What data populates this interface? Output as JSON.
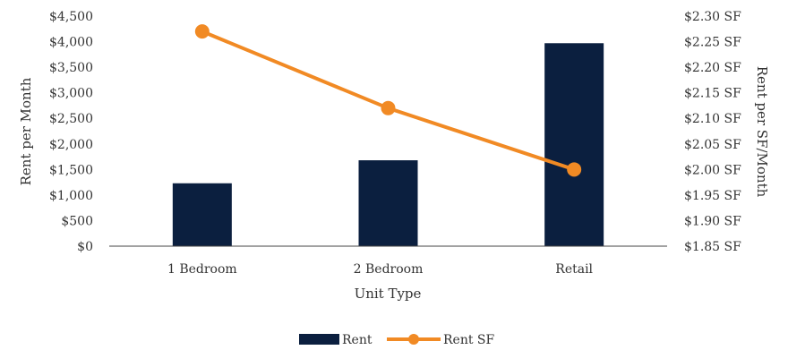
{
  "chart_data": {
    "type": "bar",
    "title": "",
    "categories": [
      "1 Bedroom",
      "2 Bedroom",
      "Retail"
    ],
    "xlabel": "Unit Type",
    "ylabel": "Rent per Month",
    "ylabel_right": "Rent per SF/Month",
    "ylim": [
      0,
      4500
    ],
    "ylim_right": [
      1.85,
      2.3
    ],
    "yticks": [
      "$0",
      "$500",
      "$1,000",
      "$1,500",
      "$2,000",
      "$2,500",
      "$3,000",
      "$3,500",
      "$4,000",
      "$4,500"
    ],
    "yticks_right": [
      "$1.85 SF",
      "$1.90 SF",
      "$1.95 SF",
      "$2.00 SF",
      "$2.05 SF",
      "$2.10 SF",
      "$2.15 SF",
      "$2.20 SF",
      "$2.25 SF",
      "$2.30 SF"
    ],
    "series": [
      {
        "name": "Rent",
        "type": "bar",
        "axis": "left",
        "color": "#0b1f3f",
        "values": [
          1230,
          1680,
          3970
        ]
      },
      {
        "name": "Rent SF",
        "type": "line",
        "axis": "right",
        "color": "#f18a24",
        "values": [
          2.27,
          2.12,
          2.0
        ]
      }
    ],
    "grid": false,
    "legend": "bottom"
  }
}
